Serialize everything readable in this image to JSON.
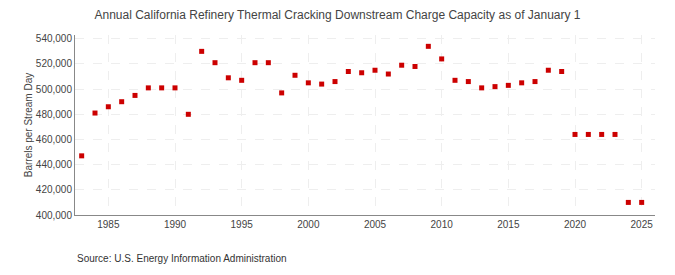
{
  "chart_data": {
    "type": "scatter",
    "title": "Annual California Refinery Thermal Cracking Downstream Charge Capacity as of January 1",
    "ylabel": "Barrels per Stream Day",
    "annotations": [
      "Source: U.S. Energy Information Administration"
    ],
    "color": "#cc0000",
    "marker": "square",
    "x": [
      1983,
      1984,
      1985,
      1986,
      1987,
      1988,
      1989,
      1990,
      1991,
      1992,
      1993,
      1994,
      1995,
      1996,
      1997,
      1998,
      1999,
      2000,
      2001,
      2002,
      2003,
      2004,
      2005,
      2006,
      2007,
      2008,
      2009,
      2010,
      2011,
      2012,
      2013,
      2014,
      2015,
      2016,
      2017,
      2018,
      2019,
      2020,
      2021,
      2022,
      2023,
      2024,
      2025
    ],
    "values": [
      447000,
      481000,
      486000,
      490000,
      495000,
      501000,
      501000,
      501000,
      480000,
      530000,
      521000,
      509000,
      507000,
      521000,
      521000,
      497000,
      511000,
      505000,
      504000,
      506000,
      514000,
      513000,
      515000,
      512000,
      519000,
      518000,
      534000,
      524000,
      507000,
      506000,
      501000,
      502000,
      503000,
      505000,
      506000,
      515000,
      514000,
      464000,
      464000,
      464000,
      464000,
      410000,
      410000
    ],
    "xlim": [
      1982.5,
      2026
    ],
    "xticks": [
      1985,
      1990,
      1995,
      2000,
      2005,
      2010,
      2015,
      2020,
      2025
    ],
    "ylim": [
      400000,
      543000
    ],
    "yticks": [
      {
        "value": 400000,
        "label": "400,000"
      },
      {
        "value": 420000,
        "label": "420,000"
      },
      {
        "value": 440000,
        "label": "440,000"
      },
      {
        "value": 460000,
        "label": "460,000"
      },
      {
        "value": 480000,
        "label": "480,000"
      },
      {
        "value": 500000,
        "label": "500,000"
      },
      {
        "value": 520000,
        "label": "520,000"
      },
      {
        "value": 540000,
        "label": "540,000"
      }
    ],
    "grid": true
  }
}
